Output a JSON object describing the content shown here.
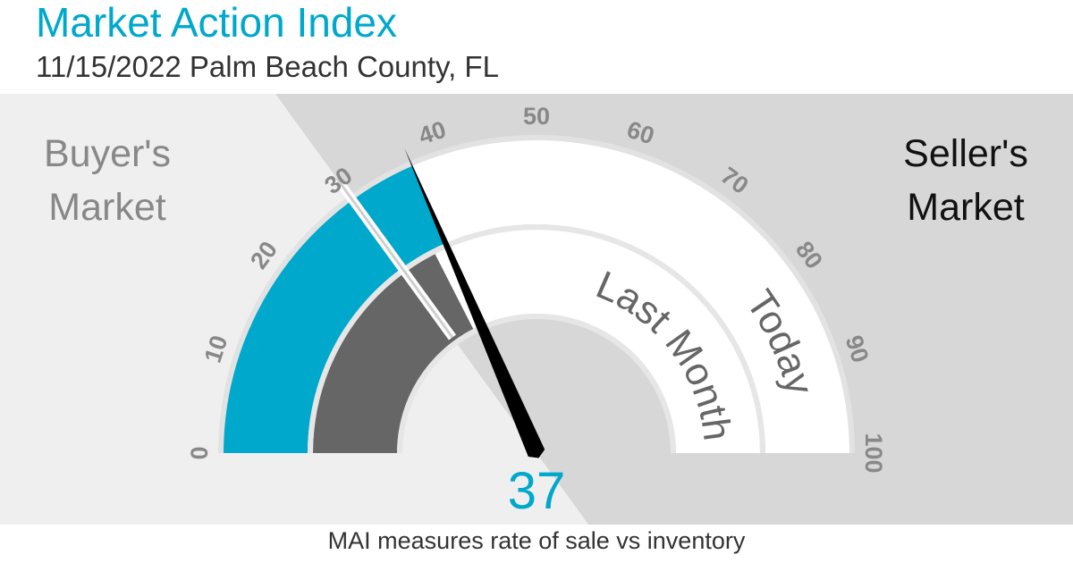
{
  "header": {
    "title": "Market Action Index",
    "subtitle": "11/15/2022 Palm Beach County, FL"
  },
  "labels": {
    "buyers_line1": "Buyer's",
    "buyers_line2": "Market",
    "sellers_line1": "Seller's",
    "sellers_line2": "Market",
    "outer_ring": "Today",
    "inner_ring": "Last Month"
  },
  "footer": "MAI measures rate of sale vs inventory",
  "colors": {
    "accent": "#00a8cc",
    "last_month_fill": "#666666",
    "buyers_zone": "#efefef",
    "sellers_zone": "#d7d7d7"
  },
  "chart_data": {
    "type": "gauge",
    "scale": [
      0,
      100
    ],
    "ticks": [
      "0",
      "10",
      "20",
      "30",
      "40",
      "50",
      "60",
      "70",
      "80",
      "90",
      "100"
    ],
    "threshold": 30,
    "today_value": 37,
    "last_month_value": 35,
    "display_value": "37"
  }
}
